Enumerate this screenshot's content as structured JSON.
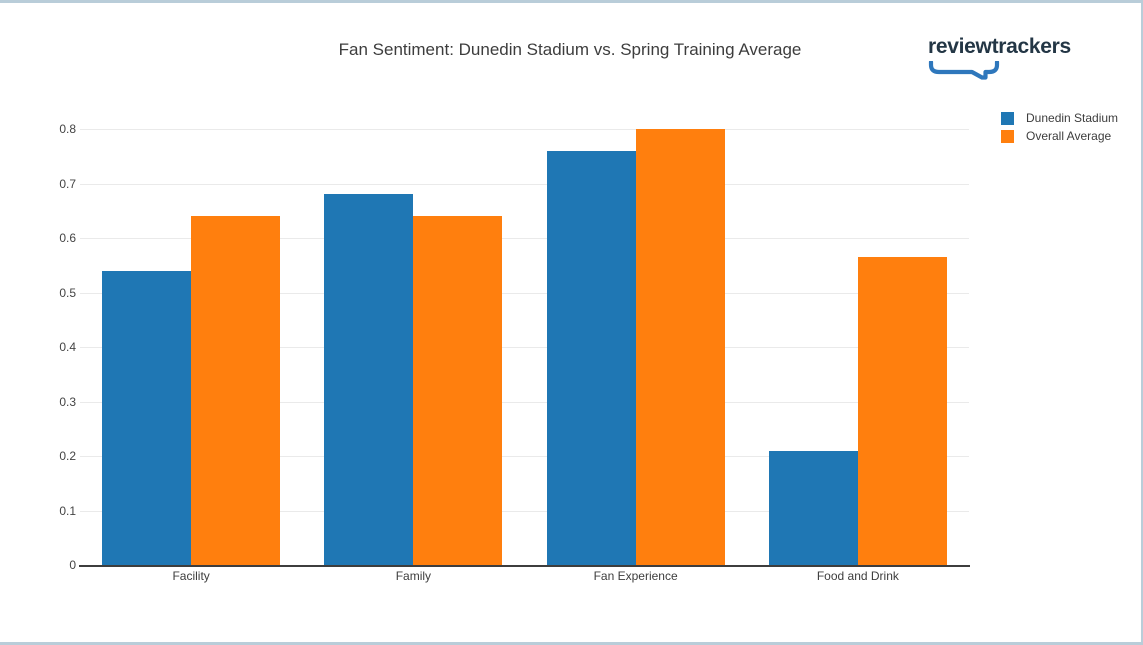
{
  "page": {
    "logo_text": "reviewtrackers",
    "border_color": "#b9cdd9",
    "background": "#ffffff"
  },
  "chart_data": {
    "type": "bar",
    "title": "Fan Sentiment: Dunedin Stadium vs. Spring Training Average",
    "categories": [
      "Facility",
      "Family",
      "Fan Experience",
      "Food and Drink"
    ],
    "series": [
      {
        "name": "Dunedin Stadium",
        "color": "#1f77b4",
        "values": [
          0.54,
          0.68,
          0.76,
          0.21
        ]
      },
      {
        "name": "Overall Average",
        "color": "#ff7f0e",
        "values": [
          0.64,
          0.64,
          0.8,
          0.565
        ]
      }
    ],
    "yticks": [
      0,
      0.1,
      0.2,
      0.3,
      0.4,
      0.5,
      0.6,
      0.7,
      0.8
    ],
    "ylim": [
      0,
      0.84
    ],
    "grid": true,
    "grid_color": "#eaeaea",
    "axis_color": "#3d3d3d",
    "legend_position": "top-right-outside",
    "xlabel": "",
    "ylabel": ""
  }
}
